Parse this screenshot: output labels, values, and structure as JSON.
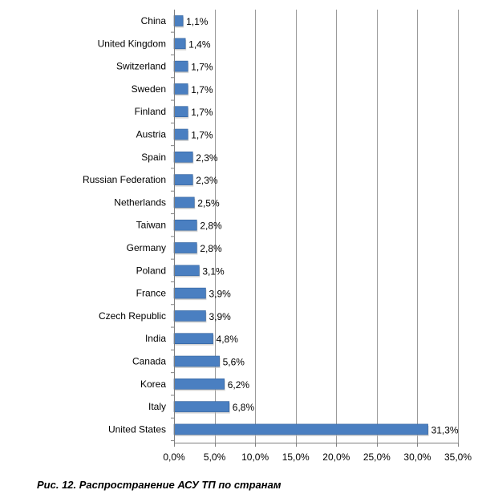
{
  "caption": "Рис. 12. Распространение АСУ ТП по странам",
  "colors": {
    "bar": "#4a7fc1",
    "bar_edge": "#2f5f9a",
    "grid": "#9a9a9a",
    "axis": "#7f7f7f"
  },
  "chart_data": {
    "type": "bar",
    "orientation": "horizontal",
    "categories": [
      "China",
      "United Kingdom",
      "Switzerland",
      "Sweden",
      "Finland",
      "Austria",
      "Spain",
      "Russian Federation",
      "Netherlands",
      "Taiwan",
      "Germany",
      "Poland",
      "France",
      "Czech Republic",
      "India",
      "Canada",
      "Korea",
      "Italy",
      "United States"
    ],
    "values": [
      1.1,
      1.4,
      1.7,
      1.7,
      1.7,
      1.7,
      2.3,
      2.3,
      2.5,
      2.8,
      2.8,
      3.1,
      3.9,
      3.9,
      4.8,
      5.6,
      6.2,
      6.8,
      31.3
    ],
    "value_labels": [
      "1,1%",
      "1,4%",
      "1,7%",
      "1,7%",
      "1,7%",
      "1,7%",
      "2,3%",
      "2,3%",
      "2,5%",
      "2,8%",
      "2,8%",
      "3,1%",
      "3,9%",
      "3,9%",
      "4,8%",
      "5,6%",
      "6,2%",
      "6,8%",
      "31,3%"
    ],
    "xlim": [
      0,
      35
    ],
    "xticks": [
      0,
      5,
      10,
      15,
      20,
      25,
      30,
      35
    ],
    "xtick_labels": [
      "0,0%",
      "5,0%",
      "10,0%",
      "15,0%",
      "20,0%",
      "25,0%",
      "30,0%",
      "35,0%"
    ],
    "grid": true,
    "legend": "none",
    "title": "",
    "xlabel": "",
    "ylabel": ""
  }
}
